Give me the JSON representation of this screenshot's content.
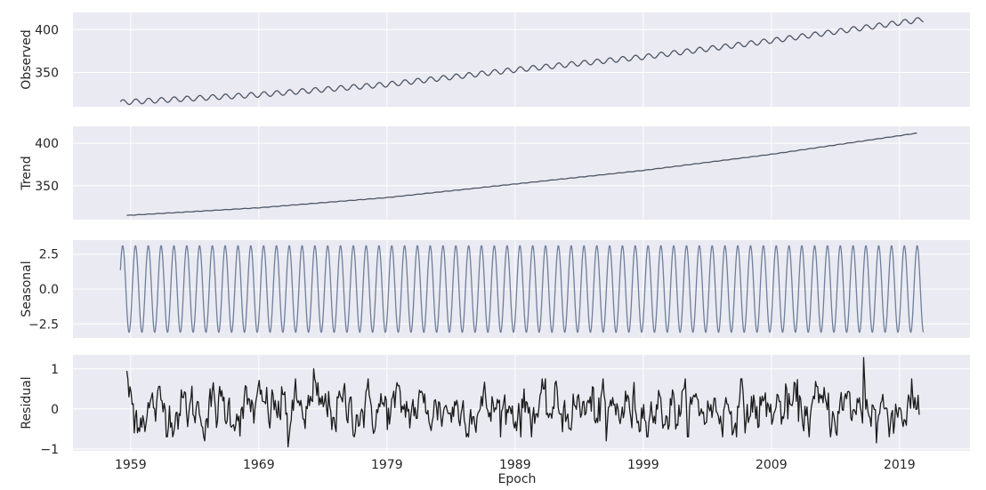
{
  "chart_data": {
    "type": "line",
    "xlabel": "Epoch",
    "x_ticks": [
      "1959",
      "1969",
      "1979",
      "1989",
      "1999",
      "2009",
      "2019"
    ],
    "x_range": [
      1954.5,
      2024.5
    ],
    "series_start": 1958.2,
    "series_end": 2020.9,
    "grid": true,
    "line_color": "#4c5564",
    "seasonal_color": "#6f7f9b",
    "background_color": "#eaeaf2",
    "panels": [
      {
        "name": "observed",
        "ylabel": "Observed",
        "ylim": [
          310,
          420
        ],
        "yticks": [
          "400",
          "350"
        ],
        "ytick_values": [
          400,
          350
        ],
        "trend_points": [
          [
            1958.2,
            315
          ],
          [
            1969,
            324
          ],
          [
            1979,
            336
          ],
          [
            1989,
            353
          ],
          [
            1999,
            368
          ],
          [
            2009,
            387
          ],
          [
            2020.9,
            412
          ]
        ],
        "seasonal_amplitude": 3
      },
      {
        "name": "trend",
        "ylabel": "Trend",
        "ylim": [
          310,
          420
        ],
        "yticks": [
          "400",
          "350"
        ],
        "ytick_values": [
          400,
          350
        ],
        "trend_points": [
          [
            1958.7,
            315
          ],
          [
            1969,
            324
          ],
          [
            1979,
            336
          ],
          [
            1989,
            352
          ],
          [
            1999,
            368
          ],
          [
            2009,
            387
          ],
          [
            2020.4,
            412
          ]
        ]
      },
      {
        "name": "seasonal",
        "ylabel": "Seasonal",
        "ylim": [
          -3.5,
          3.5
        ],
        "yticks": [
          "2.5",
          "0.0",
          "−2.5"
        ],
        "ytick_values": [
          2.5,
          0,
          -2.5
        ],
        "amplitude": 3.1
      },
      {
        "name": "residual",
        "ylabel": "Residual",
        "ylim": [
          -1.05,
          1.35
        ],
        "yticks": [
          "1",
          "0",
          "−1"
        ],
        "ytick_values": [
          1,
          0,
          -1
        ],
        "spikes": [
          [
            1958.7,
            0.95
          ],
          [
            1973.3,
            1.0
          ],
          [
            2016.2,
            1.28
          ],
          [
            1971.3,
            -0.95
          ],
          [
            1964.8,
            -0.8
          ],
          [
            1996.1,
            -0.8
          ],
          [
            2017.2,
            -0.85
          ],
          [
            1959.3,
            -0.6
          ]
        ]
      }
    ]
  }
}
